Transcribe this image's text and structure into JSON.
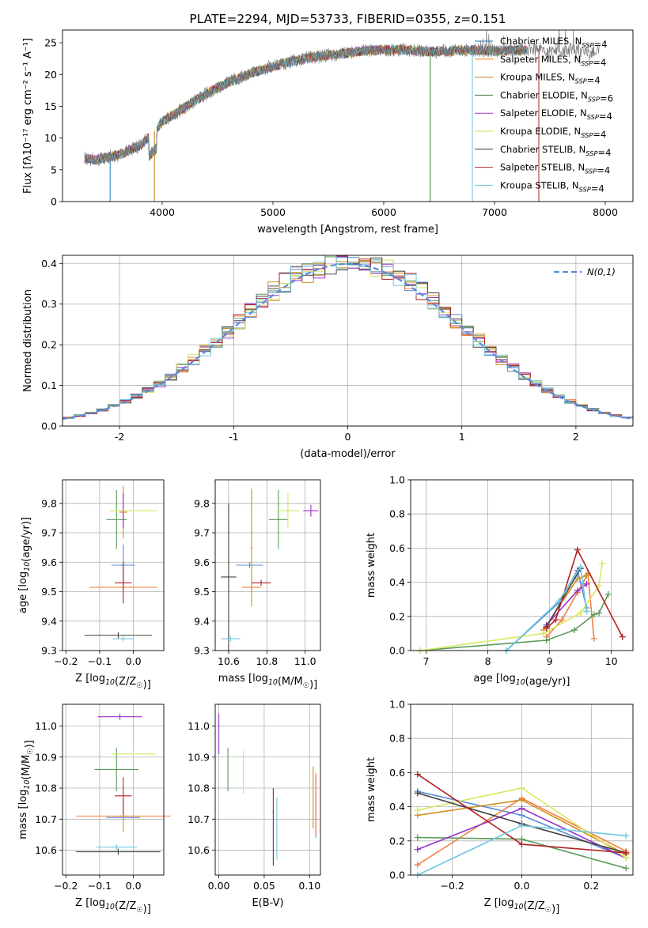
{
  "chart_data": [
    {
      "id": "spectrum",
      "type": "line",
      "title": "PLATE=2294, MJD=53733, FIBERID=0355, z=0.151",
      "xlabel": "wavelength [Angstrom, rest frame]",
      "ylabel": "Flux [fλ10⁻¹⁷ erg cm⁻² s⁻¹ A⁻¹]",
      "xlim": [
        3100,
        8250
      ],
      "ylim": [
        0,
        27
      ],
      "xticks": [
        4000,
        5000,
        6000,
        7000,
        8000
      ],
      "yticks": [
        0,
        5,
        10,
        15,
        20,
        25
      ],
      "data_color": "#777777",
      "continuum": {
        "x": [
          3300,
          3400,
          3600,
          3800,
          3900,
          4000,
          4200,
          4400,
          4600,
          4800,
          5000,
          5200,
          5400,
          5600,
          5800,
          6000,
          6200,
          6400,
          6600,
          6800,
          7000,
          7200,
          7400,
          7600,
          7800,
          8000
        ],
        "y": [
          6.8,
          6.6,
          7.3,
          8.8,
          10.5,
          12.5,
          14.8,
          17.0,
          18.8,
          20.2,
          21.3,
          22.2,
          22.8,
          23.2,
          23.7,
          23.9,
          23.9,
          23.6,
          23.7,
          23.9,
          23.7,
          23.8,
          24.0,
          23.8,
          23.6,
          23.8
        ]
      },
      "legend": [
        {
          "name": "Chabrier MILES, N$_{SSP}$=4",
          "color": "#1f77b4"
        },
        {
          "name": "Salpeter MILES, N$_{SSP}$=4",
          "color": "#ff7f0e"
        },
        {
          "name": "Kroupa MILES, N$_{SSP}$=4",
          "color": "#b8860b"
        },
        {
          "name": "Chabrier ELODIE, N$_{SSP}$=6",
          "color": "#3c7a3c"
        },
        {
          "name": "Salpeter ELODIE, N$_{SSP}$=4",
          "color": "#9932cc"
        },
        {
          "name": "Kroupa ELODIE, N$_{SSP}$=4",
          "color": "#d4e157"
        },
        {
          "name": "Chabrier STELIB, N$_{SSP}$=4",
          "color": "#333333"
        },
        {
          "name": "Salpeter STELIB, N$_{SSP}$=4",
          "color": "#b22222"
        },
        {
          "name": "Kroupa STELIB, N$_{SSP}$=4",
          "color": "#66c2dd"
        }
      ]
    },
    {
      "id": "residuals",
      "type": "bar",
      "xlabel": "(data-model)/error",
      "ylabel": "Normed distribution",
      "xlim": [
        -2.5,
        2.5
      ],
      "ylim": [
        0,
        0.42
      ],
      "xticks": [
        -2,
        -1,
        0,
        1,
        2
      ],
      "yticks": [
        0.0,
        0.1,
        0.2,
        0.3,
        0.4
      ],
      "grid": true,
      "normal_legend": "$\\mathcal{N}(0,1)$",
      "normal_color": "#5b8ad8",
      "series_colors": [
        "#5b8ad8",
        "#f08040",
        "#d09020",
        "#5a9a5a",
        "#9932cc",
        "#d8e860",
        "#444444",
        "#b22222",
        "#70c8e0"
      ],
      "bin_width": 0.1
    },
    {
      "id": "age-vs-Z",
      "type": "scatter",
      "xlabel": "Z [log$_{10}$(Z/Z$_\\odot$)]",
      "ylabel": "age  [log$_{10}$(age/yr)]",
      "xlim": [
        -0.21,
        0.09
      ],
      "ylim": [
        9.3,
        9.88
      ],
      "xticks": [
        -0.2,
        -0.1,
        0.0
      ],
      "xticklabels": [
        "−0.2",
        "−0.1",
        "0.0"
      ],
      "yticks": [
        9.3,
        9.4,
        9.5,
        9.6,
        9.7,
        9.8
      ],
      "grid": true,
      "points": [
        {
          "x": -0.03,
          "xerr": 0.035,
          "y": 9.59,
          "yerr": 0.07,
          "color": "#5b8ad8"
        },
        {
          "x": -0.03,
          "xerr": 0.1,
          "y": 9.515,
          "yerr": 0.01,
          "color": "#f08040"
        },
        {
          "x": -0.03,
          "xerr": 0.012,
          "y": 9.77,
          "yerr": 0.09,
          "color": "#d09020"
        },
        {
          "x": -0.05,
          "xerr": 0.03,
          "y": 9.745,
          "yerr": 0.1,
          "color": "#5a9a5a"
        },
        {
          "x": -0.03,
          "xerr": 0.013,
          "y": 9.775,
          "yerr": 0.06,
          "color": "#9932cc"
        },
        {
          "x": 0.0,
          "xerr": 0.07,
          "y": 9.775,
          "yerr": 0.01,
          "color": "#d8e860"
        },
        {
          "x": -0.045,
          "xerr": 0.1,
          "y": 9.352,
          "yerr": 0.01,
          "color": "#444444"
        },
        {
          "x": -0.03,
          "xerr": 0.025,
          "y": 9.53,
          "yerr": 0.07,
          "color": "#b22222"
        },
        {
          "x": -0.03,
          "xerr": 0.03,
          "y": 9.34,
          "yerr": 0.01,
          "color": "#70c8e0"
        }
      ]
    },
    {
      "id": "age-vs-mass",
      "type": "scatter",
      "xlabel": "mass [log$_{10}$(M/M$_\\odot$)]",
      "ylabel": "",
      "xlim": [
        10.53,
        11.08
      ],
      "ylim": [
        9.3,
        9.88
      ],
      "xticks": [
        10.6,
        10.8,
        11.0
      ],
      "xticklabels": [
        "10.6",
        "10.8",
        "11.0"
      ],
      "yticks": [
        9.3,
        9.4,
        9.5,
        9.6,
        9.7,
        9.8
      ],
      "grid": true,
      "points": [
        {
          "x": 10.71,
          "xerr": 0.07,
          "y": 9.59,
          "yerr": 0.01,
          "color": "#5b8ad8"
        },
        {
          "x": 10.72,
          "xerr": 0.05,
          "y": 9.515,
          "yerr": 0.01,
          "color": "#f08040"
        },
        {
          "x": 10.72,
          "xerr": 0.005,
          "y": 9.65,
          "yerr": 0.2,
          "color": "#d09020"
        },
        {
          "x": 10.86,
          "xerr": 0.05,
          "y": 9.745,
          "yerr": 0.1,
          "color": "#5a9a5a"
        },
        {
          "x": 11.03,
          "xerr": 0.04,
          "y": 9.775,
          "yerr": 0.02,
          "color": "#9932cc"
        },
        {
          "x": 10.91,
          "xerr": 0.06,
          "y": 9.775,
          "yerr": 0.06,
          "color": "#d8e860"
        },
        {
          "x": 10.6,
          "xerr": 0.04,
          "y": 9.55,
          "yerr": 0.25,
          "color": "#444444"
        },
        {
          "x": 10.77,
          "xerr": 0.05,
          "y": 9.53,
          "yerr": 0.01,
          "color": "#b22222"
        },
        {
          "x": 10.61,
          "xerr": 0.05,
          "y": 9.34,
          "yerr": 0.01,
          "color": "#70c8e0"
        }
      ]
    },
    {
      "id": "massweight-vs-age",
      "type": "line",
      "xlabel": "age  [log$_{10}$(age/yr)]",
      "ylabel": "mass weight",
      "xlim": [
        6.75,
        10.35
      ],
      "ylim": [
        0,
        1
      ],
      "xticks": [
        7,
        8,
        9,
        10
      ],
      "yticks": [
        0.0,
        0.2,
        0.4,
        0.6,
        0.8,
        1.0
      ],
      "grid": true,
      "series": [
        {
          "color": "#5b8ad8",
          "x": [
            8.3,
            9.15,
            9.45,
            9.6
          ],
          "y": [
            0.0,
            0.28,
            0.47,
            0.25
          ]
        },
        {
          "color": "#f08040",
          "x": [
            8.95,
            9.2,
            9.45,
            9.62,
            9.72
          ],
          "y": [
            0.08,
            0.18,
            0.34,
            0.45,
            0.07
          ]
        },
        {
          "color": "#d09020",
          "x": [
            8.9,
            9.45,
            9.6
          ],
          "y": [
            0.12,
            0.42,
            0.44
          ]
        },
        {
          "color": "#5a9a5a",
          "x": [
            6.9,
            8.95,
            9.4,
            9.72,
            9.8,
            9.95
          ],
          "y": [
            0.0,
            0.06,
            0.12,
            0.21,
            0.22,
            0.33
          ]
        },
        {
          "color": "#9932cc",
          "x": [
            8.95,
            9.45,
            9.6
          ],
          "y": [
            0.15,
            0.35,
            0.39
          ]
        },
        {
          "color": "#d8e860",
          "x": [
            6.9,
            8.9,
            9.5,
            9.8,
            9.85
          ],
          "y": [
            0.0,
            0.1,
            0.22,
            0.38,
            0.51
          ]
        },
        {
          "color": "#444444",
          "x": [
            8.95,
            9.5
          ],
          "y": [
            0.14,
            0.48
          ]
        },
        {
          "color": "#b22222",
          "x": [
            8.95,
            9.1,
            9.45,
            10.18
          ],
          "y": [
            0.13,
            0.18,
            0.59,
            0.08
          ]
        },
        {
          "color": "#70c8e0",
          "x": [
            8.3,
            9.15,
            9.5,
            9.6
          ],
          "y": [
            0.0,
            0.29,
            0.49,
            0.23
          ]
        }
      ]
    },
    {
      "id": "mass-vs-Z",
      "type": "scatter",
      "xlabel": "Z [log$_{10}$(Z/Z$_\\odot$)]",
      "ylabel": "mass [log$_{10}$(M/M$_\\odot$)]",
      "xlim": [
        -0.21,
        0.09
      ],
      "ylim": [
        10.52,
        11.07
      ],
      "xticks": [
        -0.2,
        -0.1,
        0.0
      ],
      "xticklabels": [
        "−0.2",
        "−0.1",
        "0.0"
      ],
      "yticks": [
        10.6,
        10.7,
        10.8,
        10.9,
        11.0
      ],
      "grid": true,
      "points": [
        {
          "x": -0.03,
          "xerr": 0.05,
          "y": 10.705,
          "yerr": 0.01,
          "color": "#5b8ad8"
        },
        {
          "x": -0.03,
          "xerr": 0.14,
          "y": 10.71,
          "yerr": 0.01,
          "color": "#f08040"
        },
        {
          "x": -0.03,
          "xerr": 0.01,
          "y": 10.71,
          "yerr": 0.05,
          "color": "#d09020"
        },
        {
          "x": -0.05,
          "xerr": 0.065,
          "y": 10.86,
          "yerr": 0.07,
          "color": "#5a9a5a"
        },
        {
          "x": -0.04,
          "xerr": 0.065,
          "y": 11.03,
          "yerr": 0.01,
          "color": "#9932cc"
        },
        {
          "x": 0.0,
          "xerr": 0.065,
          "y": 10.91,
          "yerr": 0.01,
          "color": "#d8e860"
        },
        {
          "x": -0.045,
          "xerr": 0.125,
          "y": 10.595,
          "yerr": 0.01,
          "color": "#444444"
        },
        {
          "x": -0.03,
          "xerr": 0.025,
          "y": 10.775,
          "yerr": 0.06,
          "color": "#b22222"
        },
        {
          "x": -0.05,
          "xerr": 0.06,
          "y": 10.61,
          "yerr": 0.01,
          "color": "#70c8e0"
        }
      ]
    },
    {
      "id": "mass-vs-EBV",
      "type": "scatter",
      "xlabel": "E(B-V)",
      "ylabel": "",
      "xlim": [
        -0.004,
        0.112
      ],
      "ylim": [
        10.52,
        11.07
      ],
      "xticks": [
        0.0,
        0.05,
        0.1
      ],
      "xticklabels": [
        "0.00",
        "0.05",
        "0.10"
      ],
      "yticks": [
        10.6,
        10.7,
        10.8,
        10.9,
        11.0
      ],
      "grid": true,
      "points": [
        {
          "x": 0.107,
          "y": 10.74,
          "yerr": 0.1,
          "color": "#5b8ad8"
        },
        {
          "x": 0.107,
          "y": 10.75,
          "yerr": 0.1,
          "color": "#f08040"
        },
        {
          "x": 0.104,
          "y": 10.77,
          "yerr": 0.1,
          "color": "#d09020"
        },
        {
          "x": 0.01,
          "y": 10.86,
          "yerr": 0.07,
          "color": "#5a9a5a"
        },
        {
          "x": 0.0,
          "y": 10.975,
          "yerr": 0.065,
          "color": "#9932cc"
        },
        {
          "x": 0.027,
          "y": 10.85,
          "yerr": 0.07,
          "color": "#d8e860"
        },
        {
          "x": 0.06,
          "y": 10.64,
          "yerr": 0.09,
          "color": "#444444"
        },
        {
          "x": 0.06,
          "y": 10.76,
          "yerr": 0.04,
          "color": "#b22222"
        },
        {
          "x": 0.064,
          "y": 10.67,
          "yerr": 0.1,
          "color": "#70c8e0"
        }
      ]
    },
    {
      "id": "massweight-vs-Z",
      "type": "line",
      "xlabel": "Z [log$_{10}$(Z/Z$_\\odot$)]",
      "ylabel": "mass weight",
      "xlim": [
        -0.32,
        0.32
      ],
      "ylim": [
        0,
        1
      ],
      "xticks": [
        -0.2,
        0.0,
        0.2
      ],
      "xticklabels": [
        "−0.2",
        "0.0",
        "0.2"
      ],
      "yticks": [
        0.0,
        0.2,
        0.4,
        0.6,
        0.8,
        1.0
      ],
      "grid": true,
      "series": [
        {
          "color": "#5b8ad8",
          "x": [
            -0.3,
            0.0,
            0.3
          ],
          "y": [
            0.49,
            0.35,
            0.1
          ]
        },
        {
          "color": "#f08040",
          "x": [
            -0.3,
            0.0,
            0.3
          ],
          "y": [
            0.06,
            0.45,
            0.14
          ]
        },
        {
          "color": "#d09020",
          "x": [
            -0.3,
            0.0,
            0.3
          ],
          "y": [
            0.35,
            0.44,
            0.12
          ]
        },
        {
          "color": "#5a9a5a",
          "x": [
            -0.3,
            0.0,
            0.3
          ],
          "y": [
            0.22,
            0.21,
            0.04
          ]
        },
        {
          "color": "#9932cc",
          "x": [
            -0.3,
            0.0,
            0.3
          ],
          "y": [
            0.15,
            0.39,
            0.1
          ]
        },
        {
          "color": "#d8e860",
          "x": [
            -0.3,
            0.0,
            0.3
          ],
          "y": [
            0.38,
            0.51,
            0.1
          ]
        },
        {
          "color": "#444444",
          "x": [
            -0.3,
            0.0,
            0.3
          ],
          "y": [
            0.48,
            0.3,
            0.13
          ]
        },
        {
          "color": "#b22222",
          "x": [
            -0.3,
            0.0,
            0.3
          ],
          "y": [
            0.59,
            0.18,
            0.13
          ]
        },
        {
          "color": "#70c8e0",
          "x": [
            -0.3,
            0.0,
            0.3
          ],
          "y": [
            0.0,
            0.29,
            0.23
          ]
        }
      ]
    }
  ]
}
